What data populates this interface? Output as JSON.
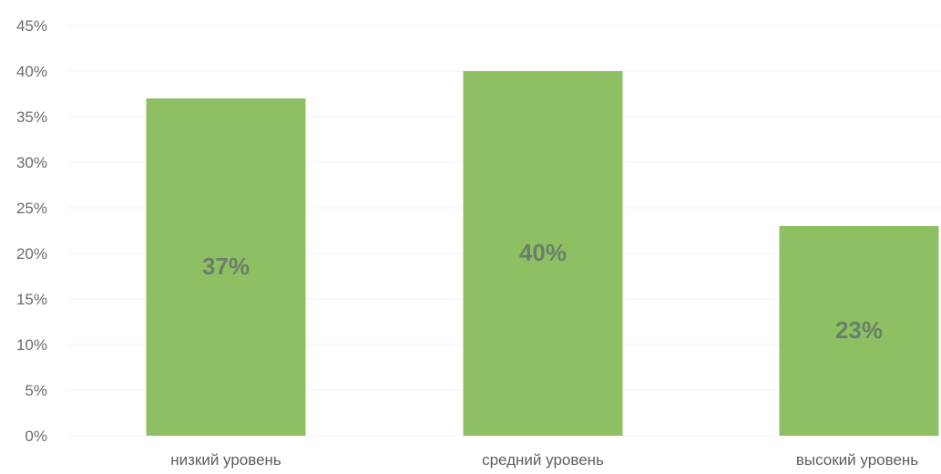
{
  "chart_data": {
    "type": "bar",
    "categories": [
      "низкий уровень",
      "средний уровень",
      "высокий уровень"
    ],
    "values": [
      37,
      40,
      23
    ],
    "data_labels": [
      "37%",
      "40%",
      "23%"
    ],
    "ylim": [
      0,
      45
    ],
    "y_ticks": [
      "0%",
      "5%",
      "10%",
      "15%",
      "20%",
      "25%",
      "30%",
      "35%",
      "40%",
      "45%"
    ],
    "grid": true,
    "legend": "none",
    "colors": {
      "bar": "#8ec063",
      "data_label": "#6a7f6a",
      "tick_label": "#6b6b6b"
    }
  }
}
